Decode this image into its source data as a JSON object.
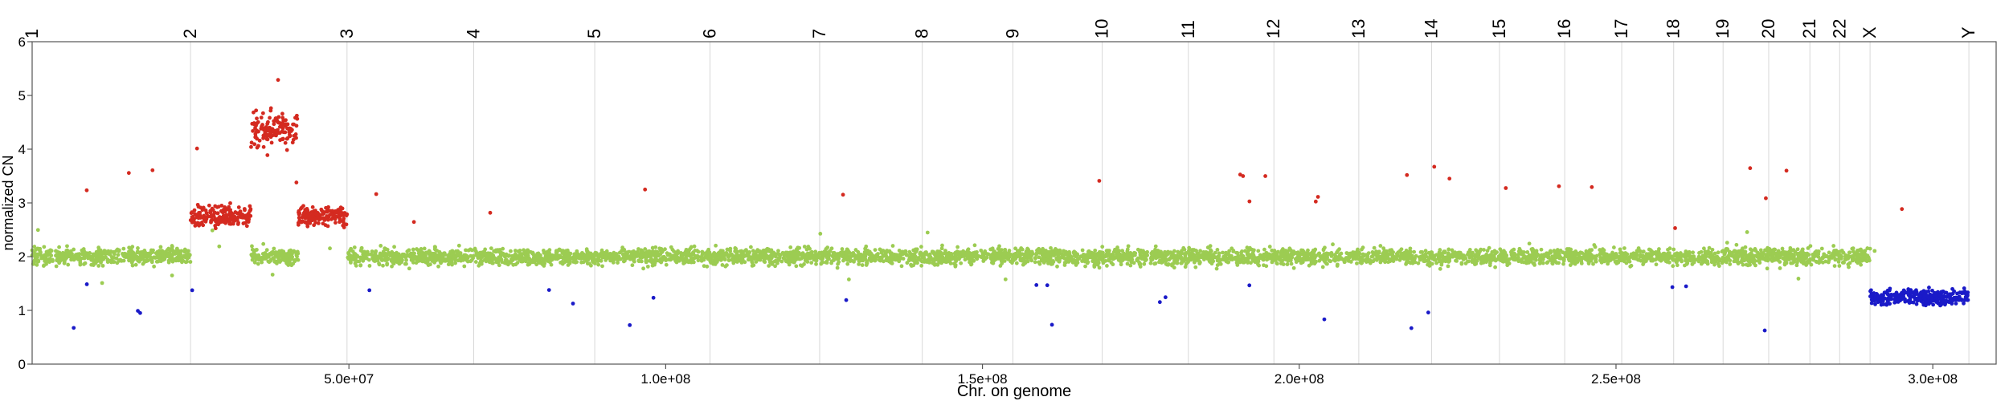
{
  "chart_data": {
    "type": "scatter",
    "title": "",
    "xlabel": "Chr. on genome",
    "ylabel": "normalized CN",
    "xlim": [
      0,
      310000000
    ],
    "ylim": [
      0,
      6
    ],
    "x_ticks": [
      50000000,
      100000000,
      150000000,
      200000000,
      250000000,
      300000000
    ],
    "x_tick_labels": [
      "5.0e+07",
      "1.0e+08",
      "1.5e+08",
      "2.0e+08",
      "2.5e+08",
      "3.0e+08"
    ],
    "y_ticks": [
      0,
      1,
      2,
      3,
      4,
      5,
      6
    ],
    "y_tick_labels": [
      "0",
      "1",
      "2",
      "3",
      "4",
      "5",
      "6"
    ],
    "chromosome_labels": [
      "1",
      "2",
      "3",
      "4",
      "5",
      "6",
      "7",
      "8",
      "9",
      "10",
      "11",
      "12",
      "13",
      "14",
      "15",
      "16",
      "17",
      "18",
      "19",
      "20",
      "21",
      "22",
      "X",
      "Y"
    ],
    "chromosome_boundaries": [
      0,
      25000000,
      49700000,
      69700000,
      88800000,
      107000000,
      124300000,
      140500000,
      154800000,
      168900000,
      182500000,
      196000000,
      209400000,
      220900000,
      231600000,
      241900000,
      250900000,
      259100000,
      266900000,
      274100000,
      280600000,
      285300000,
      290100000,
      305700000,
      310000000
    ],
    "grid": "vertical lines at chromosome boundaries",
    "colors": {
      "gain": "#d42a20",
      "neutral": "#9ccc52",
      "loss": "#1a1ac8"
    },
    "series": [
      {
        "values": [
          {
            "x_start": 0,
            "x_end": 25000000,
            "cn": 2.0
          },
          {
            "x_start": 25000000,
            "x_end": 34500000,
            "cn": 2.75
          },
          {
            "x_start": 34500000,
            "x_end": 42000000,
            "cn": 2.0
          },
          {
            "x_start": 34500000,
            "x_end": 42000000,
            "cn": 4.35
          },
          {
            "x_start": 42000000,
            "x_end": 49700000,
            "cn": 2.75
          },
          {
            "x_start": 49700000,
            "x_end": 290100000,
            "cn": 2.0
          },
          {
            "x_start": 290100000,
            "x_end": 305700000,
            "cn": 1.25
          }
        ]
      }
    ]
  }
}
